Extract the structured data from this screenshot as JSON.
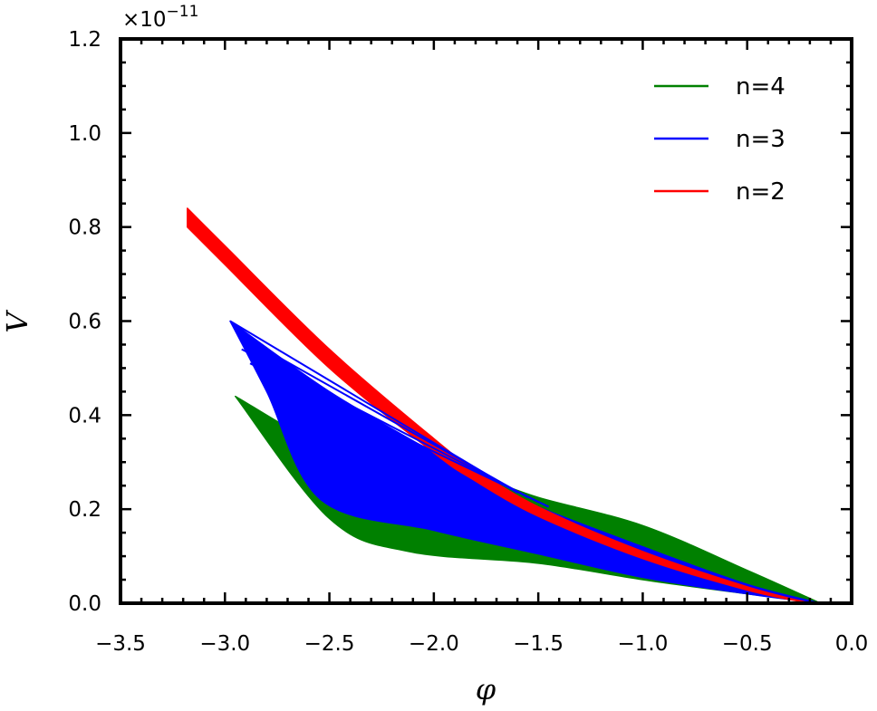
{
  "chart_data": {
    "type": "line",
    "title": "",
    "xlabel": "φ",
    "ylabel": "V",
    "y_scale_multiplier": "×10^-11",
    "multiplier_text": "×10",
    "multiplier_exponent": "−11",
    "xlim": [
      -3.5,
      0.0
    ],
    "ylim": [
      0.0,
      1.2
    ],
    "x_ticks": [
      "−3.5",
      "−3.0",
      "−2.5",
      "−2.0",
      "−1.5",
      "−1.0",
      "−0.5",
      "0.0"
    ],
    "x_tick_values": [
      -3.5,
      -3.0,
      -2.5,
      -2.0,
      -1.5,
      -1.0,
      -0.5,
      0.0
    ],
    "y_ticks": [
      "0.0",
      "0.2",
      "0.4",
      "0.6",
      "0.8",
      "1.0",
      "1.2"
    ],
    "y_tick_values": [
      0.0,
      0.2,
      0.4,
      0.6,
      0.8,
      1.0,
      1.2
    ],
    "grid": false,
    "legend_position": "upper right",
    "series": [
      {
        "name": "n=4",
        "color": "#008000",
        "description": "band of many curves",
        "upper_envelope": {
          "x": [
            -2.95,
            -2.5,
            -2.0,
            -1.82,
            -1.5,
            -1.0,
            -0.5,
            -0.15
          ],
          "y": [
            0.44,
            0.33,
            0.28,
            0.275,
            0.225,
            0.165,
            0.07,
            0.0
          ]
        },
        "lower_envelope": {
          "x": [
            -2.95,
            -2.5,
            -2.12,
            -1.5,
            -1.0,
            -0.5,
            -0.15
          ],
          "y": [
            0.44,
            0.18,
            0.11,
            0.085,
            0.05,
            0.02,
            0.0
          ]
        }
      },
      {
        "name": "n=3",
        "color": "#0000ff",
        "description": "band of many curves",
        "upper_envelope": {
          "x": [
            -2.975,
            -2.5,
            -2.0,
            -1.82,
            -1.5,
            -1.0,
            -0.5,
            -0.15
          ],
          "y": [
            0.6,
            0.45,
            0.32,
            0.275,
            0.205,
            0.12,
            0.04,
            0.0
          ]
        },
        "lower_envelope": {
          "x": [
            -2.975,
            -2.8,
            -2.54,
            -2.0,
            -1.5,
            -1.0,
            -0.5,
            -0.15
          ],
          "y": [
            0.6,
            0.45,
            0.22,
            0.155,
            0.105,
            0.055,
            0.02,
            0.0
          ]
        }
      },
      {
        "name": "n=2",
        "color": "#ff0000",
        "description": "narrow band of curves",
        "upper_envelope": {
          "x": [
            -3.18,
            -3.0,
            -2.5,
            -2.0,
            -1.82,
            -1.5,
            -1.0,
            -0.5,
            -0.2
          ],
          "y": [
            0.84,
            0.76,
            0.54,
            0.35,
            0.29,
            0.205,
            0.11,
            0.035,
            0.0
          ]
        },
        "lower_envelope": {
          "x": [
            -3.18,
            -3.0,
            -2.5,
            -2.0,
            -1.82,
            -1.5,
            -1.0,
            -0.5,
            -0.2
          ],
          "y": [
            0.8,
            0.72,
            0.5,
            0.32,
            0.265,
            0.185,
            0.095,
            0.028,
            0.0
          ]
        }
      }
    ]
  },
  "legend": {
    "items": [
      {
        "label": "n=4",
        "color": "#008000"
      },
      {
        "label": "n=3",
        "color": "#0000ff"
      },
      {
        "label": "n=2",
        "color": "#ff0000"
      }
    ]
  }
}
